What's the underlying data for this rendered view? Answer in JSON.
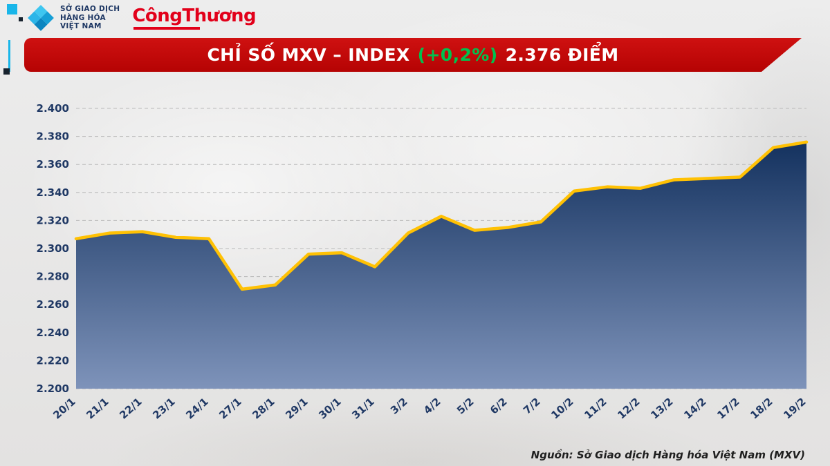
{
  "header": {
    "mxv_logo": {
      "line1": "SỞ GIAO DỊCH",
      "line2": "HÀNG HÓA",
      "line3": "VIỆT NAM"
    },
    "congthuong_logo": {
      "text": "CôngThương"
    }
  },
  "banner": {
    "title_main": "CHỈ SỐ MXV – INDEX",
    "title_change": "(+0,2%)",
    "title_value": "2.376 ĐIỂM",
    "bg_color": "#C00000",
    "change_color": "#00B050"
  },
  "chart_data": {
    "type": "area",
    "title": "CHỈ SỐ MXV – INDEX (+0,2%) 2.376 ĐIỂM",
    "x": [
      "20/1",
      "21/1",
      "22/1",
      "23/1",
      "24/1",
      "27/1",
      "28/1",
      "29/1",
      "30/1",
      "31/1",
      "3/2",
      "4/2",
      "5/2",
      "6/2",
      "7/2",
      "10/2",
      "11/2",
      "12/2",
      "13/2",
      "14/2",
      "17/2",
      "18/2",
      "19/2"
    ],
    "values": [
      2307,
      2311,
      2312,
      2308,
      2307,
      2271,
      2274,
      2296,
      2297,
      2287,
      2311,
      2323,
      2313,
      2315,
      2319,
      2341,
      2344,
      2343,
      2349,
      2350,
      2351,
      2372,
      2376
    ],
    "ylim": [
      2200,
      2400
    ],
    "y_tick_step": 20,
    "y_tick_labels": [
      "2.200",
      "2.220",
      "2.240",
      "2.260",
      "2.280",
      "2.300",
      "2.320",
      "2.340",
      "2.360",
      "2.380",
      "2.400"
    ],
    "grid": true,
    "legend": "none",
    "line_color": "#FFC104",
    "area_top_color": "#14325F",
    "area_bottom_color": "#7E93BA",
    "axis_label_color": "#1F3864"
  },
  "footer": {
    "source": "Nguồn: Sở Giao dịch Hàng hóa Việt Nam (MXV)"
  }
}
